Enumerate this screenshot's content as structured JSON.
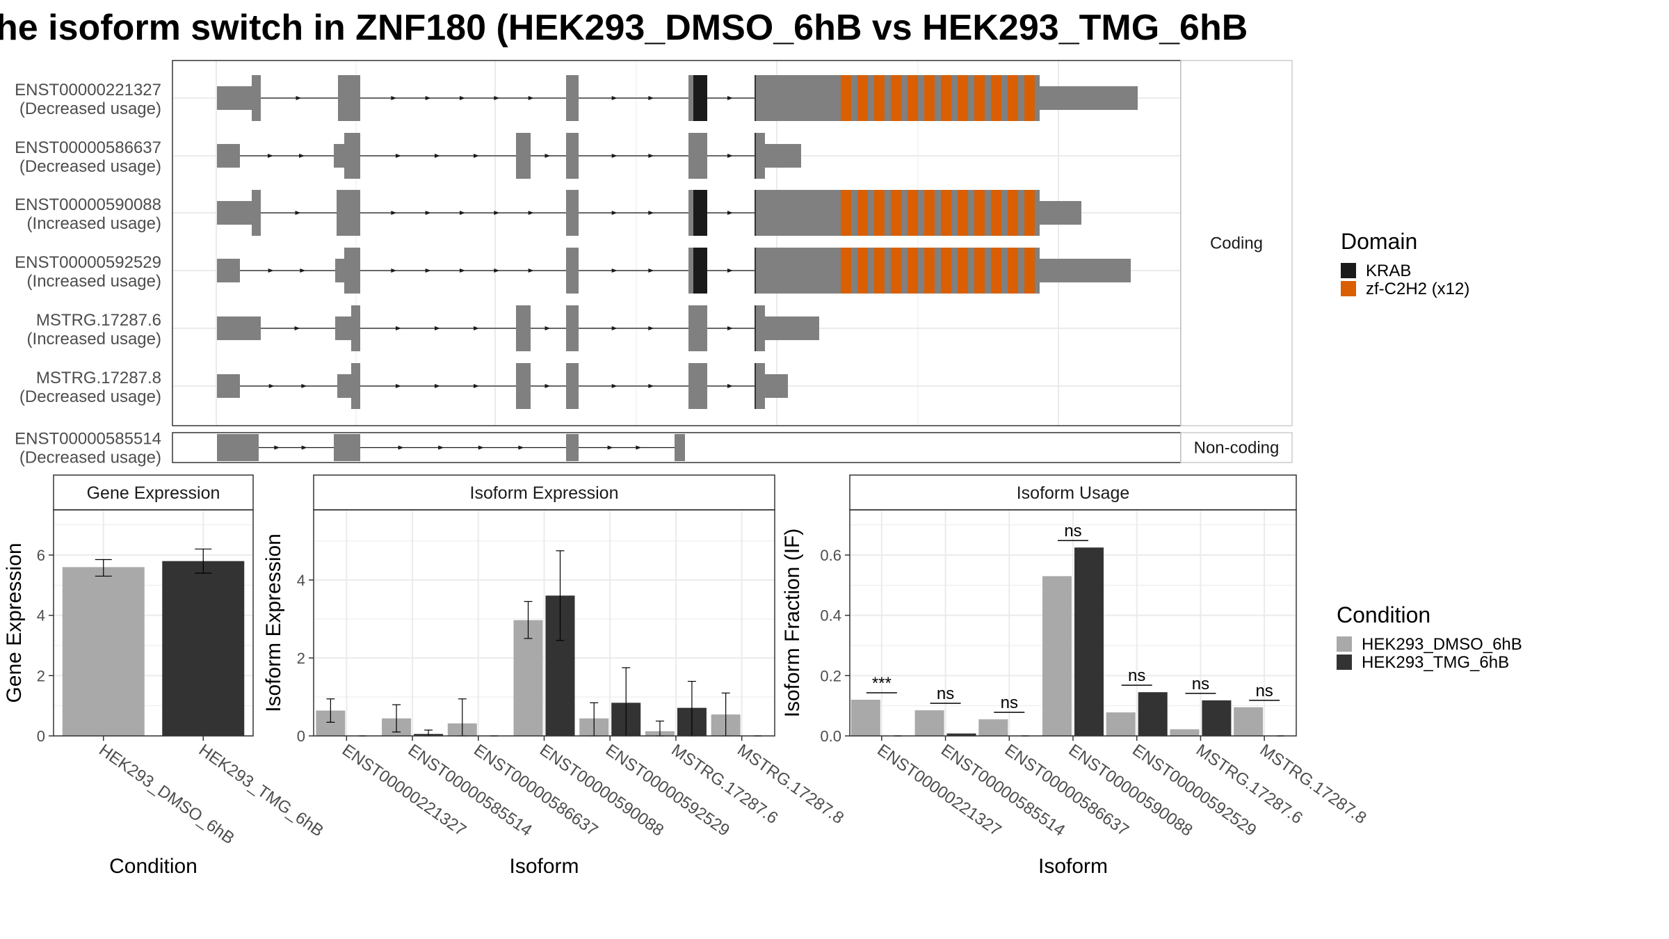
{
  "title": "he isoform switch in ZNF180 (HEK293_DMSO_6hB vs HEK293_TMG_6hB",
  "colors": {
    "exon": "#808080",
    "krab": "#1a1a1a",
    "zf": "#d95f02",
    "dmso": "#a9a9a9",
    "tmg": "#333333",
    "grid": "#ebebeb",
    "strip": "#ffffff",
    "text": "#4d4d4d"
  },
  "structure": {
    "coding_strip": "Coding",
    "noncoding_strip": "Non-coding",
    "coding_tracks": [
      {
        "id": "ENST00000221327",
        "note": "(Decreased usage)"
      },
      {
        "id": "ENST00000586637",
        "note": "(Decreased usage)"
      },
      {
        "id": "ENST00000590088",
        "note": "(Increased usage)"
      },
      {
        "id": "ENST00000592529",
        "note": "(Increased usage)"
      },
      {
        "id": "MSTRG.17287.6",
        "note": "(Increased usage)"
      },
      {
        "id": "MSTRG.17287.8",
        "note": "(Decreased usage)"
      }
    ],
    "noncoding_tracks": [
      {
        "id": "ENST00000585514",
        "note": "(Decreased usage)"
      }
    ]
  },
  "domain_legend": {
    "title": "Domain",
    "items": [
      {
        "label": "KRAB",
        "color": "#1a1a1a"
      },
      {
        "label": "zf-C2H2 (x12)",
        "color": "#d95f02"
      }
    ]
  },
  "condition_legend": {
    "title": "Condition",
    "items": [
      {
        "label": "HEK293_DMSO_6hB",
        "color": "#a9a9a9"
      },
      {
        "label": "HEK293_TMG_6hB",
        "color": "#333333"
      }
    ]
  },
  "chart_data": [
    {
      "type": "bar",
      "title": "Gene Expression",
      "xlabel": "Condition",
      "ylabel": "Gene Expression",
      "ylim": [
        0,
        7.5
      ],
      "yticks": [
        0,
        2,
        4,
        6
      ],
      "categories": [
        "HEK293_DMSO_6hB",
        "HEK293_TMG_6hB"
      ],
      "values": [
        5.6,
        5.8
      ],
      "errors": [
        [
          5.3,
          5.85
        ],
        [
          5.4,
          6.2
        ]
      ],
      "grid": true
    },
    {
      "type": "bar",
      "title": "Isoform Expression",
      "xlabel": "Isoform",
      "ylabel": "Isoform Expression",
      "ylim": [
        0,
        5.8
      ],
      "yticks": [
        0,
        2,
        4
      ],
      "categories": [
        "ENST00000221327",
        "ENST00000585514",
        "ENST00000586637",
        "ENST00000590088",
        "ENST00000592529",
        "MSTRG.17287.6",
        "MSTRG.17287.8"
      ],
      "series": [
        {
          "name": "HEK293_DMSO_6hB",
          "values": [
            0.65,
            0.45,
            0.32,
            2.97,
            0.45,
            0.12,
            0.55
          ],
          "errors": [
            [
              0.35,
              0.95
            ],
            [
              0.1,
              0.8
            ],
            [
              0.0,
              0.95
            ],
            [
              2.5,
              3.45
            ],
            [
              0.0,
              0.85
            ],
            [
              0.0,
              0.38
            ],
            [
              0.0,
              1.1
            ]
          ]
        },
        {
          "name": "HEK293_TMG_6hB",
          "values": [
            0.0,
            0.05,
            0.0,
            3.6,
            0.85,
            0.72,
            0.0
          ],
          "errors": [
            [
              0.0,
              0.0
            ],
            [
              0.0,
              0.15
            ],
            [
              0.0,
              0.0
            ],
            [
              2.45,
              4.75
            ],
            [
              0.0,
              1.75
            ],
            [
              0.0,
              1.4
            ],
            [
              0.0,
              0.0
            ]
          ]
        }
      ],
      "grid": true
    },
    {
      "type": "bar",
      "title": "Isoform Usage",
      "xlabel": "Isoform",
      "ylabel": "Isoform Fraction (IF)",
      "ylim": [
        0,
        0.75
      ],
      "yticks": [
        0.0,
        0.2,
        0.4,
        0.6
      ],
      "ytick_labels": [
        "0.0",
        "0.2",
        "0.4",
        "0.6"
      ],
      "categories": [
        "ENST00000221327",
        "ENST00000585514",
        "ENST00000586637",
        "ENST00000590088",
        "ENST00000592529",
        "MSTRG.17287.6",
        "MSTRG.17287.8"
      ],
      "series": [
        {
          "name": "HEK293_DMSO_6hB",
          "values": [
            0.12,
            0.085,
            0.055,
            0.53,
            0.078,
            0.022,
            0.095
          ]
        },
        {
          "name": "HEK293_TMG_6hB",
          "values": [
            0.0,
            0.008,
            0.0,
            0.625,
            0.145,
            0.118,
            0.0
          ]
        }
      ],
      "significance": [
        "***",
        "ns",
        "ns",
        "ns",
        "ns",
        "ns",
        "ns"
      ],
      "grid": true
    }
  ]
}
